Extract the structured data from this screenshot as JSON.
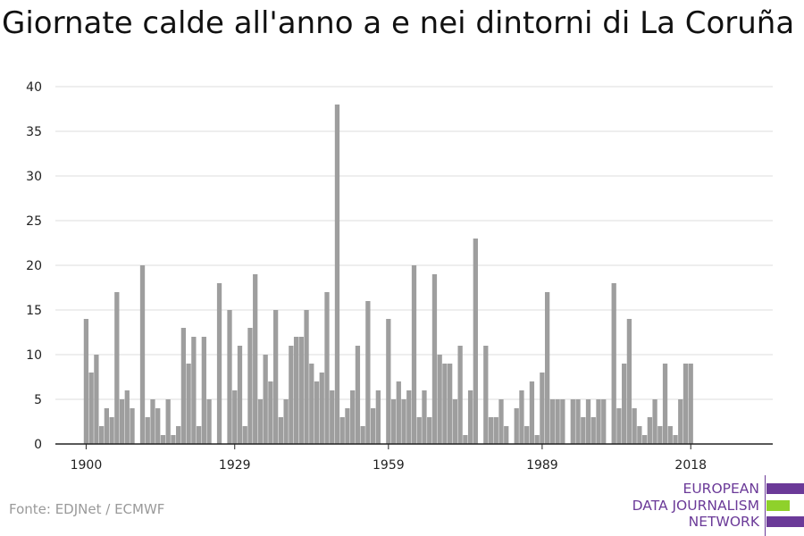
{
  "title": "Giornate calde all'anno a e nei dintorni di La Coruña",
  "source": "Fonte: EDJNet / ECMWF",
  "logo": {
    "lines": [
      "EUROPEAN",
      "DATA JOURNALISM",
      "NETWORK"
    ],
    "colors": {
      "text": "#6b3a98",
      "bar_purple": "#6b3a98",
      "bar_green": "#8fd12b"
    }
  },
  "chart_data": {
    "type": "bar",
    "title": "Giornate calde all'anno a e nei dintorni di La Coruña",
    "xlabel": "",
    "ylabel": "",
    "x_ticks": [
      1900,
      1929,
      1959,
      1989,
      2018
    ],
    "y_ticks": [
      0,
      5,
      10,
      15,
      20,
      25,
      30,
      35,
      40
    ],
    "ylim": [
      0,
      40
    ],
    "xlim": [
      1894,
      2034
    ],
    "grid": true,
    "bar_color": "#9e9e9e",
    "years": [
      1900,
      1901,
      1902,
      1903,
      1904,
      1905,
      1906,
      1907,
      1908,
      1909,
      1910,
      1911,
      1912,
      1913,
      1914,
      1915,
      1916,
      1917,
      1918,
      1919,
      1920,
      1921,
      1922,
      1923,
      1924,
      1925,
      1926,
      1927,
      1928,
      1929,
      1930,
      1931,
      1932,
      1933,
      1934,
      1935,
      1936,
      1937,
      1938,
      1939,
      1940,
      1941,
      1942,
      1943,
      1944,
      1945,
      1946,
      1947,
      1948,
      1949,
      1950,
      1951,
      1952,
      1953,
      1954,
      1955,
      1956,
      1957,
      1958,
      1959,
      1960,
      1961,
      1962,
      1963,
      1964,
      1965,
      1966,
      1967,
      1968,
      1969,
      1970,
      1971,
      1972,
      1973,
      1974,
      1975,
      1976,
      1977,
      1978,
      1979,
      1980,
      1981,
      1982,
      1983,
      1984,
      1985,
      1986,
      1987,
      1988,
      1989,
      1990,
      1991,
      1992,
      1993,
      1994,
      1995,
      1996,
      1997,
      1998,
      1999,
      2000,
      2001,
      2002,
      2003,
      2004,
      2005,
      2006,
      2007,
      2008,
      2009,
      2010,
      2011,
      2012,
      2013,
      2014,
      2015,
      2016,
      2017,
      2018
    ],
    "values": [
      14,
      8,
      10,
      2,
      4,
      3,
      17,
      5,
      6,
      4,
      0,
      20,
      3,
      5,
      4,
      1,
      5,
      1,
      2,
      13,
      9,
      12,
      2,
      12,
      5,
      0,
      18,
      0,
      15,
      6,
      11,
      2,
      13,
      19,
      5,
      10,
      7,
      15,
      3,
      5,
      11,
      12,
      12,
      15,
      9,
      7,
      8,
      17,
      6,
      38,
      3,
      4,
      6,
      11,
      2,
      16,
      4,
      6,
      0,
      14,
      5,
      7,
      5,
      6,
      20,
      3,
      6,
      3,
      19,
      10,
      9,
      9,
      5,
      11,
      1,
      6,
      23,
      0,
      11,
      3,
      3,
      5,
      2,
      0,
      4,
      6,
      2,
      7,
      1,
      8,
      17,
      5,
      5,
      5,
      0,
      5,
      5,
      3,
      5,
      3,
      5,
      5,
      0,
      18,
      4,
      9,
      14,
      4,
      2,
      1,
      3,
      5,
      2,
      9,
      2,
      1,
      5,
      9,
      9
    ]
  }
}
